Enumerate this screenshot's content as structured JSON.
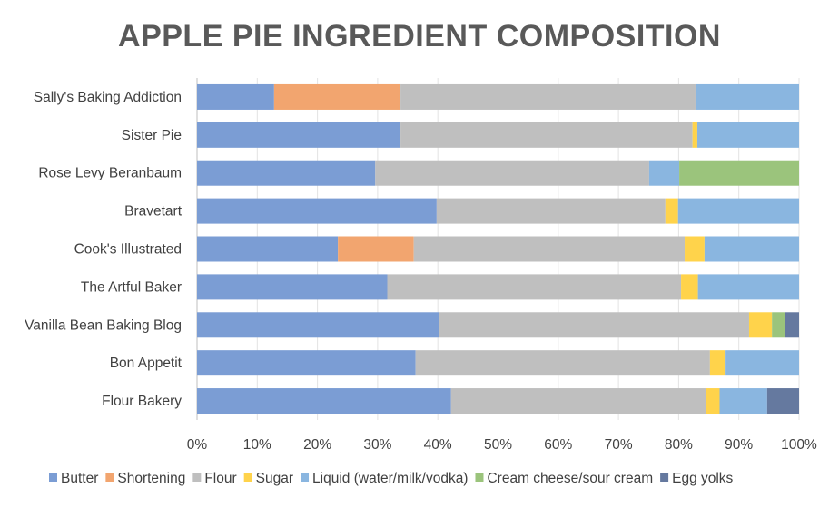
{
  "chart_data": {
    "type": "bar",
    "orientation": "horizontal",
    "stacked": "100%",
    "title": "APPLE PIE INGREDIENT COMPOSITION",
    "categories": [
      "Sally's Baking Addiction",
      "Sister Pie",
      "Rose Levy Beranbaum",
      "Bravetart",
      "Cook's Illustrated",
      "The Artful Baker",
      "Vanilla Bean Baking Blog",
      "Bon Appetit",
      "Flour Bakery"
    ],
    "series": [
      {
        "name": "Butter",
        "color": "#7b9dd4",
        "values": [
          12.8,
          33.8,
          29.6,
          39.8,
          23.4,
          31.6,
          40.2,
          36.3,
          42.2
        ]
      },
      {
        "name": "Shortening",
        "color": "#f2a56f",
        "values": [
          21.0,
          0,
          0,
          0,
          12.6,
          0,
          0,
          0,
          0
        ]
      },
      {
        "name": "Flour",
        "color": "#bfbfbf",
        "values": [
          49.0,
          48.5,
          45.5,
          38.0,
          45.0,
          48.8,
          51.5,
          48.9,
          42.4
        ]
      },
      {
        "name": "Sugar",
        "color": "#ffd34b",
        "values": [
          0,
          0.8,
          0,
          2.1,
          3.3,
          2.8,
          3.8,
          2.6,
          2.2
        ]
      },
      {
        "name": "Liquid (water/milk/vodka)",
        "color": "#8ab6e0",
        "values": [
          17.2,
          16.9,
          5.0,
          20.1,
          15.7,
          16.8,
          0,
          12.2,
          7.9
        ]
      },
      {
        "name": "Cream cheese/sour cream",
        "color": "#9bc47c",
        "values": [
          0,
          0,
          19.9,
          0,
          0,
          0,
          2.2,
          0,
          0
        ]
      },
      {
        "name": "Egg yolks",
        "color": "#65799f",
        "values": [
          0,
          0,
          0,
          0,
          0,
          0,
          2.3,
          0,
          5.3
        ]
      }
    ],
    "xlim": [
      0,
      100
    ],
    "xticks": [
      "0%",
      "10%",
      "20%",
      "30%",
      "40%",
      "50%",
      "60%",
      "70%",
      "80%",
      "90%",
      "100%"
    ],
    "grid": "vertical",
    "legend": "bottom"
  }
}
